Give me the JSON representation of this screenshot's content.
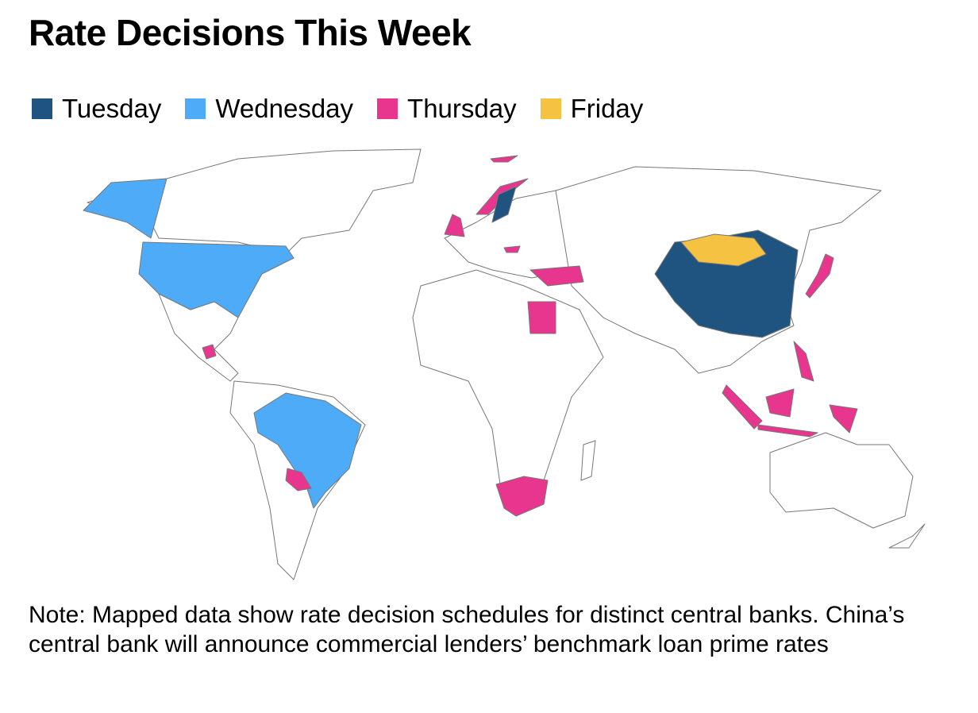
{
  "title": "Rate Decisions This Week",
  "legend": [
    {
      "name": "Tuesday",
      "color": "#1f5380"
    },
    {
      "name": "Wednesday",
      "color": "#4dabf7"
    },
    {
      "name": "Thursday",
      "color": "#e8368f"
    },
    {
      "name": "Friday",
      "color": "#f5c242"
    }
  ],
  "note": "Note: Mapped data show rate decision schedules for distinct central banks. China’s central bank will announce commercial lenders’ benchmark loan prime rates"
}
